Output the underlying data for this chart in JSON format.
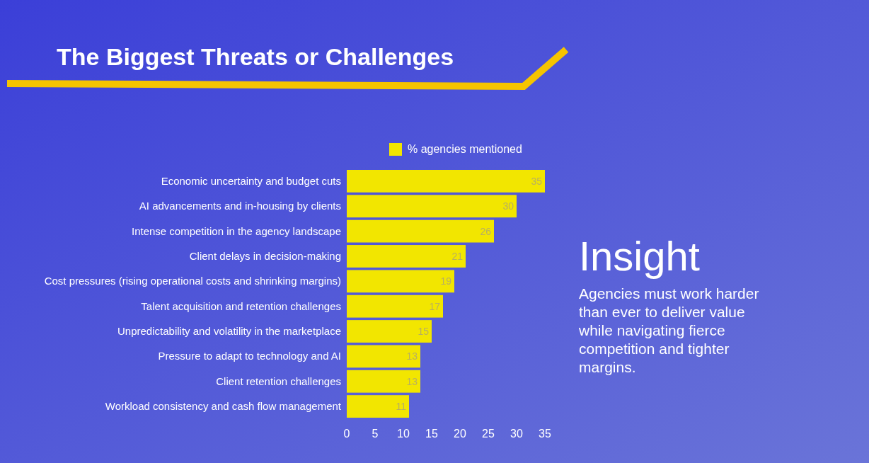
{
  "chart_data": {
    "type": "bar",
    "orientation": "horizontal",
    "title": "The Biggest Threats or Challenges",
    "categories": [
      "Economic uncertainty and budget cuts",
      "AI advancements and in-housing by clients",
      "Intense competition in the agency landscape",
      "Client delays in decision-making",
      "Cost pressures (rising operational costs and shrinking margins)",
      "Talent acquisition and retention challenges",
      "Unpredictability and volatility in the marketplace",
      "Pressure to adapt to technology and AI",
      "Client retention challenges",
      "Workload consistency and cash flow management"
    ],
    "series": [
      {
        "name": "% agencies mentioned",
        "color": "#f2e600",
        "values": [
          35,
          30,
          26,
          21,
          19,
          17,
          15,
          13,
          13,
          11
        ]
      }
    ],
    "xlim": [
      0,
      35
    ],
    "xticks": [
      0,
      5,
      10,
      15,
      20,
      25,
      30,
      35
    ],
    "data_labels": true,
    "legend": "top",
    "grid": false,
    "annotations": [
      "Insight",
      "Agencies must work harder than ever to deliver value while navigating fierce competition and tighter margins."
    ]
  }
}
